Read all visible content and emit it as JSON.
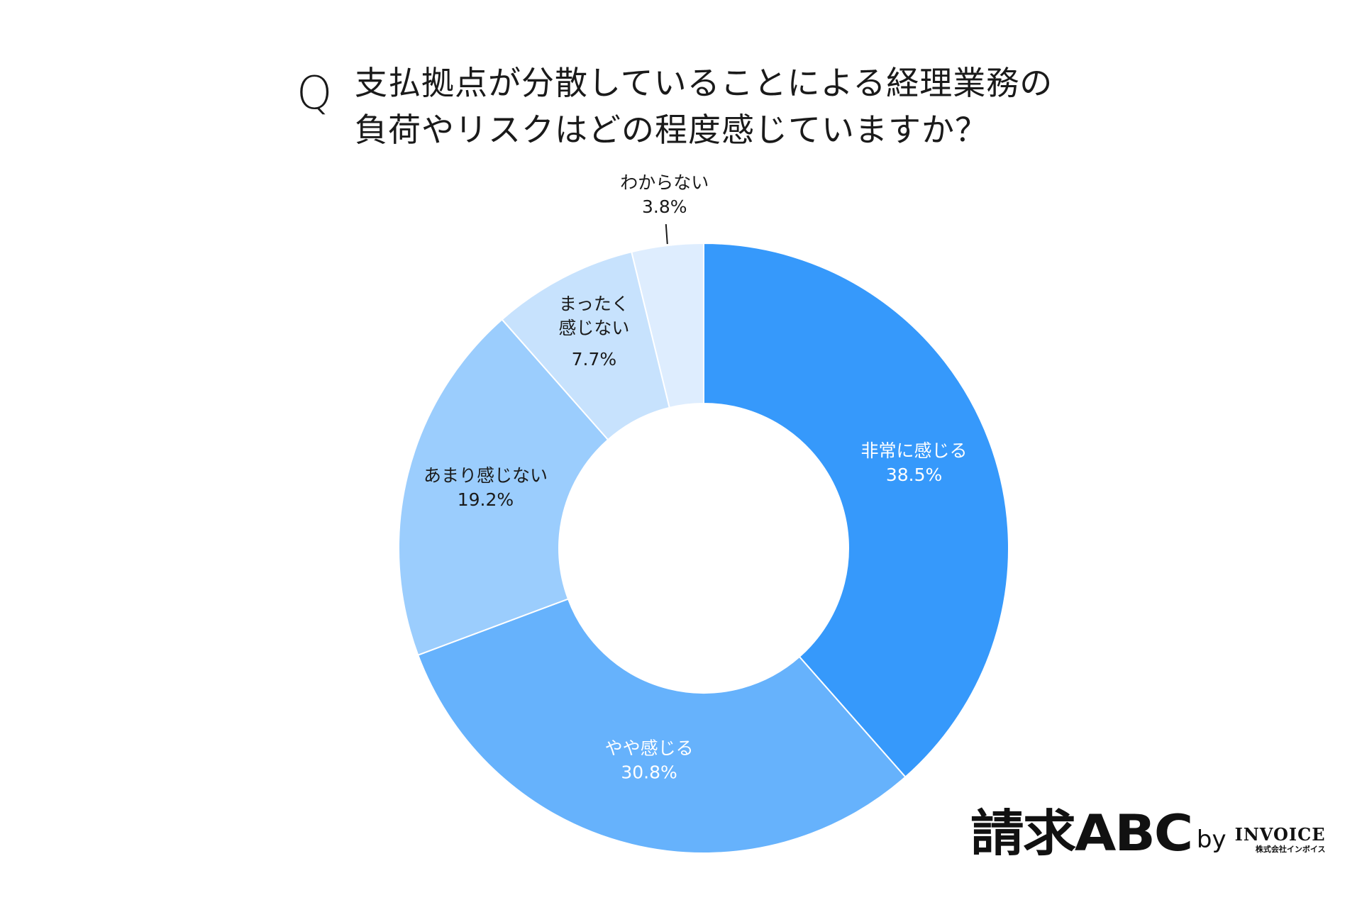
{
  "question": {
    "mark": "Q",
    "line1": "支払拠点が分散していることによる経理業務の",
    "line2": "負荷やリスクはどの程度感じていますか？"
  },
  "chart_data": {
    "type": "pie",
    "donut": true,
    "categories": [
      "非常に感じる",
      "やや感じる",
      "あまり感じない",
      "まったく感じない",
      "わからない"
    ],
    "values": [
      38.5,
      30.8,
      19.2,
      7.7,
      3.8
    ],
    "value_labels": [
      "38.5%",
      "30.8%",
      "19.2%",
      "7.7%",
      "3.8%"
    ],
    "slice_labels": [
      [
        "非常に感じる"
      ],
      [
        "やや感じる"
      ],
      [
        "あまり感じない"
      ],
      [
        "まったく",
        "感じない"
      ],
      [
        "わからない"
      ]
    ],
    "colors": [
      "#3699fb",
      "#66b2fc",
      "#9bcdfd",
      "#c7e2fd",
      "#deedfe"
    ],
    "label_colors": [
      "#ffffff",
      "#ffffff",
      "#1a1a1a",
      "#1a1a1a",
      "#1a1a1a"
    ],
    "start_angle": "12 o'clock",
    "direction": "clockwise",
    "legend": "none"
  },
  "logo": {
    "main": "請求ABC",
    "by": "by",
    "company": "INVOICE",
    "company_kana": "株式会社インボイス"
  }
}
